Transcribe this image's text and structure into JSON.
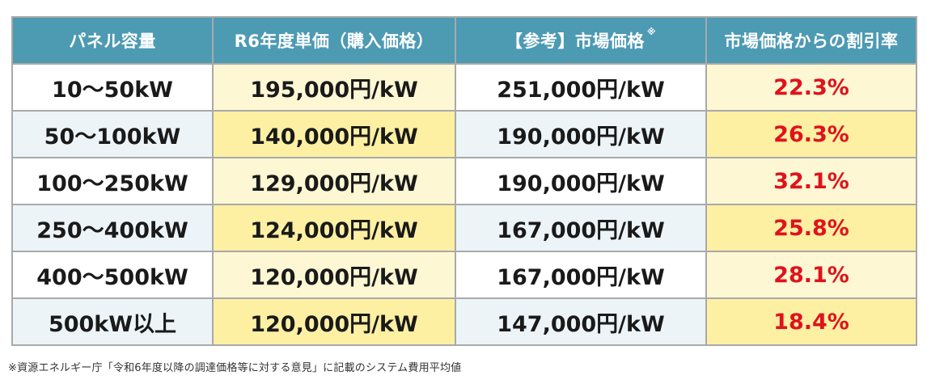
{
  "table": {
    "headers": {
      "capacity": "パネル容量",
      "unit_price": "R6年度単価（購入価格）",
      "market_price": "【参考】市場価格",
      "market_note_mark": "※",
      "discount": "市場価格からの割引率"
    },
    "rows": [
      {
        "capacity": "10〜50kW",
        "unit_price": "195,000円/kW",
        "market_price": "251,000円/kW",
        "discount": "22.3%"
      },
      {
        "capacity": "50〜100kW",
        "unit_price": "140,000円/kW",
        "market_price": "190,000円/kW",
        "discount": "26.3%"
      },
      {
        "capacity": "100〜250kW",
        "unit_price": "129,000円/kW",
        "market_price": "190,000円/kW",
        "discount": "32.1%"
      },
      {
        "capacity": "250〜400kW",
        "unit_price": "124,000円/kW",
        "market_price": "167,000円/kW",
        "discount": "25.8%"
      },
      {
        "capacity": "400〜500kW",
        "unit_price": "120,000円/kW",
        "market_price": "167,000円/kW",
        "discount": "28.1%"
      },
      {
        "capacity": "500kW以上",
        "unit_price": "120,000円/kW",
        "market_price": "147,000円/kW",
        "discount": "18.4%"
      }
    ]
  },
  "footnote": "※資源エネルギー庁「令和6年度以降の調達価格等に対する意見」に記載のシステム費用平均値",
  "colors": {
    "header_bg": "#4d9ab3",
    "header_text": "#ffffff",
    "discount_text": "#e0121c",
    "pale_yellow": "#fdf7d4",
    "strong_yellow": "#fdf0a3",
    "pale_blue": "#ecf4f7",
    "border": "#a9a9a9"
  }
}
